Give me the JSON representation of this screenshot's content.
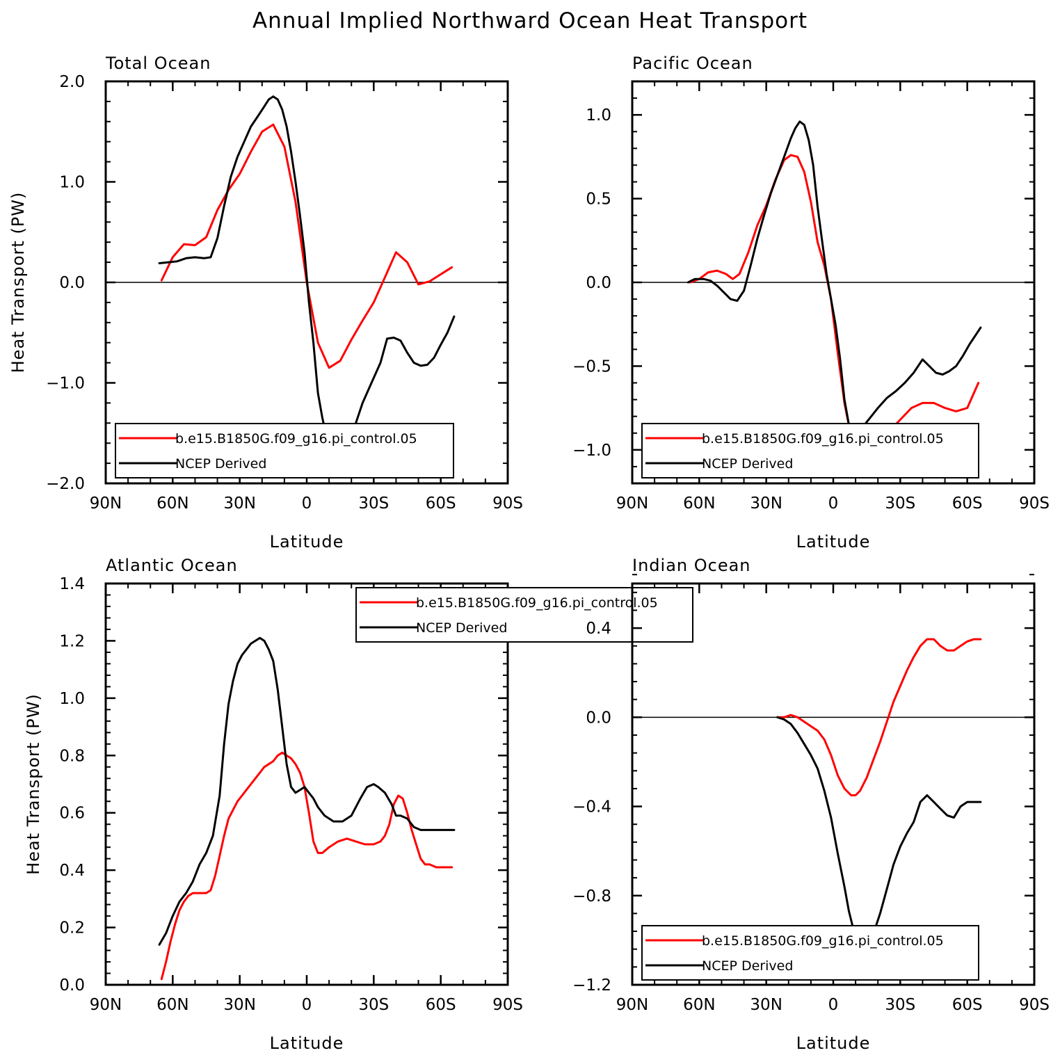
{
  "figure": {
    "title": "Annual Implied Northward Ocean Heat Transport"
  },
  "colors": {
    "model": "#ff0000",
    "observed": "#000000",
    "axes": "#000000"
  },
  "chart_data": [
    {
      "type": "line",
      "title": "Total Ocean",
      "xlabel": "Latitude",
      "ylabel": "Heat Transport (PW)",
      "xlim": [
        90,
        -90
      ],
      "ylim": [
        -2.0,
        2.0
      ],
      "xticks": [
        90,
        60,
        30,
        0,
        -30,
        -60,
        -90
      ],
      "xtick_labels": [
        "90N",
        "60N",
        "30N",
        "0",
        "30S",
        "60S",
        "90S"
      ],
      "yticks": [
        -2.0,
        -1.0,
        0.0,
        1.0,
        2.0
      ],
      "ytick_labels": [
        "−2.0",
        "−1.0",
        "0.0",
        "1.0",
        "2.0"
      ],
      "zero_line": true,
      "legend_position": "bottom",
      "series": [
        {
          "name": "b.e15.B1850G.f09_g16.pi_control.05",
          "color": "#ff0000",
          "x": [
            65,
            60,
            55,
            50,
            45,
            40,
            35,
            30,
            25,
            20,
            15,
            10,
            5,
            0,
            -5,
            -10,
            -15,
            -20,
            -25,
            -30,
            -35,
            -40,
            -45,
            -50,
            -55,
            -60,
            -65
          ],
          "y": [
            0.02,
            0.25,
            0.38,
            0.37,
            0.45,
            0.72,
            0.92,
            1.08,
            1.3,
            1.5,
            1.57,
            1.35,
            0.8,
            0.0,
            -0.6,
            -0.85,
            -0.78,
            -0.57,
            -0.38,
            -0.2,
            0.05,
            0.3,
            0.2,
            -0.02,
            0.01,
            0.08,
            0.15
          ]
        },
        {
          "name": "NCEP Derived",
          "color": "#000000",
          "x": [
            66,
            62,
            58,
            54,
            50,
            46,
            43,
            40,
            37,
            34,
            31,
            28,
            25,
            22,
            19,
            17,
            15,
            13,
            11,
            9,
            7,
            5,
            3,
            1,
            -1,
            -3,
            -5,
            -7,
            -9,
            -11,
            -13,
            -16,
            -19,
            -22,
            -25,
            -29,
            -33,
            -36,
            -39,
            -42,
            -45,
            -48,
            -51,
            -54,
            -57,
            -60,
            -63,
            -66
          ],
          "y": [
            0.19,
            0.2,
            0.21,
            0.24,
            0.25,
            0.24,
            0.25,
            0.44,
            0.76,
            1.05,
            1.25,
            1.4,
            1.55,
            1.65,
            1.75,
            1.82,
            1.85,
            1.82,
            1.72,
            1.55,
            1.3,
            1.0,
            0.66,
            0.3,
            -0.2,
            -0.6,
            -1.1,
            -1.35,
            -1.55,
            -1.65,
            -1.68,
            -1.62,
            -1.5,
            -1.4,
            -1.2,
            -1.0,
            -0.8,
            -0.56,
            -0.55,
            -0.58,
            -0.7,
            -0.8,
            -0.83,
            -0.82,
            -0.75,
            -0.62,
            -0.5,
            -0.34
          ]
        }
      ]
    },
    {
      "type": "line",
      "title": "Pacific Ocean",
      "xlabel": "Latitude",
      "ylabel": "",
      "xlim": [
        90,
        -90
      ],
      "ylim": [
        -1.2,
        1.2
      ],
      "xticks": [
        90,
        60,
        30,
        0,
        -30,
        -60,
        -90
      ],
      "xtick_labels": [
        "90N",
        "60N",
        "30N",
        "0",
        "30S",
        "60S",
        "90S"
      ],
      "yticks": [
        -1.0,
        -0.5,
        0.0,
        0.5,
        1.0
      ],
      "ytick_labels": [
        "−1.0",
        "−0.5",
        "0.0",
        "0.5",
        "1.0"
      ],
      "zero_line": true,
      "legend_position": "bottom",
      "series": [
        {
          "name": "b.e15.B1850G.f09_g16.pi_control.05",
          "color": "#ff0000",
          "x": [
            64,
            60,
            56,
            52,
            48,
            45,
            42,
            38,
            34,
            30,
            26,
            22,
            19,
            16,
            13,
            10,
            7,
            4,
            1,
            -2,
            -5,
            -8,
            -11,
            -14,
            -17,
            -20,
            -25,
            -30,
            -35,
            -40,
            -45,
            -50,
            -55,
            -60,
            -65
          ],
          "y": [
            0.0,
            0.02,
            0.06,
            0.07,
            0.05,
            0.02,
            0.05,
            0.18,
            0.34,
            0.46,
            0.61,
            0.73,
            0.76,
            0.75,
            0.66,
            0.48,
            0.24,
            0.1,
            -0.1,
            -0.42,
            -0.72,
            -0.92,
            -1.0,
            -1.01,
            -0.99,
            -0.95,
            -0.89,
            -0.82,
            -0.75,
            -0.72,
            -0.72,
            -0.75,
            -0.77,
            -0.75,
            -0.6
          ]
        },
        {
          "name": "NCEP Derived",
          "color": "#000000",
          "x": [
            65,
            62,
            58,
            55,
            52,
            49,
            46,
            43,
            40,
            37,
            34,
            31,
            28,
            25,
            22,
            19,
            17,
            15,
            13,
            11,
            9,
            7,
            5,
            3,
            1,
            -1,
            -3,
            -5,
            -7,
            -9,
            -11,
            -14,
            -17,
            -20,
            -24,
            -28,
            -32,
            -36,
            -40,
            -43,
            -46,
            -49,
            -52,
            -55,
            -58,
            -61,
            -64,
            -66
          ],
          "y": [
            0.0,
            0.02,
            0.02,
            0.01,
            -0.02,
            -0.06,
            -0.1,
            -0.11,
            -0.05,
            0.1,
            0.26,
            0.4,
            0.53,
            0.64,
            0.75,
            0.86,
            0.92,
            0.96,
            0.94,
            0.85,
            0.7,
            0.45,
            0.25,
            0.05,
            -0.1,
            -0.25,
            -0.45,
            -0.7,
            -0.85,
            -0.91,
            -0.9,
            -0.85,
            -0.8,
            -0.75,
            -0.69,
            -0.65,
            -0.6,
            -0.54,
            -0.46,
            -0.5,
            -0.54,
            -0.55,
            -0.53,
            -0.5,
            -0.44,
            -0.37,
            -0.31,
            -0.27
          ]
        }
      ]
    },
    {
      "type": "line",
      "title": "Atlantic Ocean",
      "xlabel": "Latitude",
      "ylabel": "Heat Transport (PW)",
      "xlim": [
        90,
        -90
      ],
      "ylim": [
        0.0,
        1.4
      ],
      "xticks": [
        90,
        60,
        30,
        0,
        -30,
        -60,
        -90
      ],
      "xtick_labels": [
        "90N",
        "60N",
        "30N",
        "0",
        "30S",
        "60S",
        "90S"
      ],
      "yticks": [
        0.0,
        0.2,
        0.4,
        0.6,
        0.8,
        1.0,
        1.2,
        1.4
      ],
      "ytick_labels": [
        "0.0",
        "0.2",
        "0.4",
        "0.6",
        "0.8",
        "1.0",
        "1.2",
        "1.4"
      ],
      "zero_line": false,
      "legend_position": "top-center",
      "series": [
        {
          "name": "b.e15.B1850G.f09_g16.pi_control.05",
          "color": "#ff0000",
          "x": [
            65,
            63,
            61,
            59,
            57,
            55,
            53,
            51,
            49,
            47,
            45,
            43,
            41,
            39,
            37,
            35,
            33,
            31,
            29,
            27,
            25,
            23,
            21,
            19,
            17,
            15,
            13,
            11,
            9,
            7,
            5,
            3,
            1,
            -1,
            -3,
            -5,
            -7,
            -10,
            -14,
            -18,
            -22,
            -26,
            -30,
            -33,
            -35,
            -37,
            -39,
            -41,
            -43,
            -45,
            -47,
            -49,
            -51,
            -53,
            -55,
            -58,
            -62,
            -65
          ],
          "y": [
            0.02,
            0.08,
            0.15,
            0.21,
            0.26,
            0.29,
            0.31,
            0.32,
            0.32,
            0.32,
            0.32,
            0.33,
            0.38,
            0.45,
            0.52,
            0.58,
            0.61,
            0.64,
            0.66,
            0.68,
            0.7,
            0.72,
            0.74,
            0.76,
            0.77,
            0.78,
            0.8,
            0.81,
            0.8,
            0.79,
            0.77,
            0.74,
            0.69,
            0.6,
            0.5,
            0.46,
            0.46,
            0.48,
            0.5,
            0.51,
            0.5,
            0.49,
            0.49,
            0.5,
            0.52,
            0.56,
            0.63,
            0.66,
            0.65,
            0.6,
            0.54,
            0.49,
            0.44,
            0.42,
            0.42,
            0.41,
            0.41,
            0.41
          ]
        },
        {
          "name": "NCEP Derived",
          "color": "#000000",
          "x": [
            66,
            63,
            60,
            57,
            54,
            51,
            48,
            45,
            42,
            39,
            37,
            35,
            33,
            31,
            29,
            27,
            25,
            23,
            21,
            19,
            17,
            15,
            13,
            11,
            9,
            7,
            5,
            3,
            1,
            -1,
            -3,
            -5,
            -8,
            -12,
            -16,
            -20,
            -24,
            -27,
            -30,
            -32,
            -35,
            -38,
            -40,
            -42,
            -45,
            -48,
            -51,
            -54,
            -57,
            -60,
            -63,
            -66
          ],
          "y": [
            0.14,
            0.18,
            0.24,
            0.29,
            0.32,
            0.36,
            0.42,
            0.46,
            0.52,
            0.66,
            0.84,
            0.98,
            1.06,
            1.12,
            1.15,
            1.17,
            1.19,
            1.2,
            1.21,
            1.2,
            1.17,
            1.13,
            1.03,
            0.9,
            0.77,
            0.69,
            0.67,
            0.68,
            0.69,
            0.67,
            0.65,
            0.62,
            0.59,
            0.57,
            0.57,
            0.59,
            0.65,
            0.69,
            0.7,
            0.69,
            0.67,
            0.63,
            0.59,
            0.59,
            0.58,
            0.55,
            0.54,
            0.54,
            0.54,
            0.54,
            0.54,
            0.54
          ]
        }
      ]
    },
    {
      "type": "line",
      "title": "Indian Ocean",
      "xlabel": "Latitude",
      "ylabel": "",
      "xlim": [
        90,
        -90
      ],
      "ylim": [
        -1.2,
        0.6
      ],
      "xticks": [
        90,
        60,
        30,
        0,
        -30,
        -60,
        -90
      ],
      "xtick_labels": [
        "90N",
        "60N",
        "30N",
        "0",
        "30S",
        "60S",
        "90S"
      ],
      "yticks": [
        -1.2,
        -0.8,
        -0.4,
        0.0,
        0.4
      ],
      "ytick_labels": [
        "−1.2",
        "−0.8",
        "−0.4",
        "0.0",
        "0.4"
      ],
      "zero_line": true,
      "legend_position": "bottom",
      "series": [
        {
          "name": "b.e15.B1850G.f09_g16.pi_control.05",
          "color": "#ff0000",
          "x": [
            25,
            22,
            19,
            16,
            13,
            10,
            7,
            4,
            1,
            -2,
            -5,
            -8,
            -10,
            -12,
            -15,
            -18,
            -21,
            -24,
            -27,
            -30,
            -33,
            -36,
            -39,
            -42,
            -45,
            -48,
            -51,
            -54,
            -57,
            -60,
            -63,
            -66
          ],
          "y": [
            0.0,
            0.0,
            0.01,
            0.0,
            -0.02,
            -0.04,
            -0.06,
            -0.1,
            -0.17,
            -0.26,
            -0.32,
            -0.35,
            -0.35,
            -0.33,
            -0.27,
            -0.19,
            -0.11,
            -0.02,
            0.07,
            0.14,
            0.21,
            0.27,
            0.32,
            0.35,
            0.35,
            0.32,
            0.3,
            0.3,
            0.32,
            0.34,
            0.35,
            0.35
          ]
        },
        {
          "name": "NCEP Derived",
          "color": "#000000",
          "x": [
            25,
            22,
            19,
            16,
            13,
            10,
            7,
            4,
            1,
            -2,
            -5,
            -7,
            -9,
            -11,
            -13,
            -15,
            -18,
            -21,
            -24,
            -27,
            -30,
            -33,
            -36,
            -39,
            -42,
            -45,
            -48,
            -51,
            -54,
            -57,
            -60,
            -63,
            -66
          ],
          "y": [
            0.0,
            -0.01,
            -0.03,
            -0.07,
            -0.12,
            -0.17,
            -0.23,
            -0.33,
            -0.45,
            -0.61,
            -0.76,
            -0.87,
            -0.95,
            -1.02,
            -1.05,
            -1.03,
            -0.97,
            -0.88,
            -0.77,
            -0.66,
            -0.58,
            -0.52,
            -0.47,
            -0.38,
            -0.35,
            -0.38,
            -0.41,
            -0.44,
            -0.45,
            -0.4,
            -0.38,
            -0.38,
            -0.38
          ]
        }
      ]
    }
  ]
}
